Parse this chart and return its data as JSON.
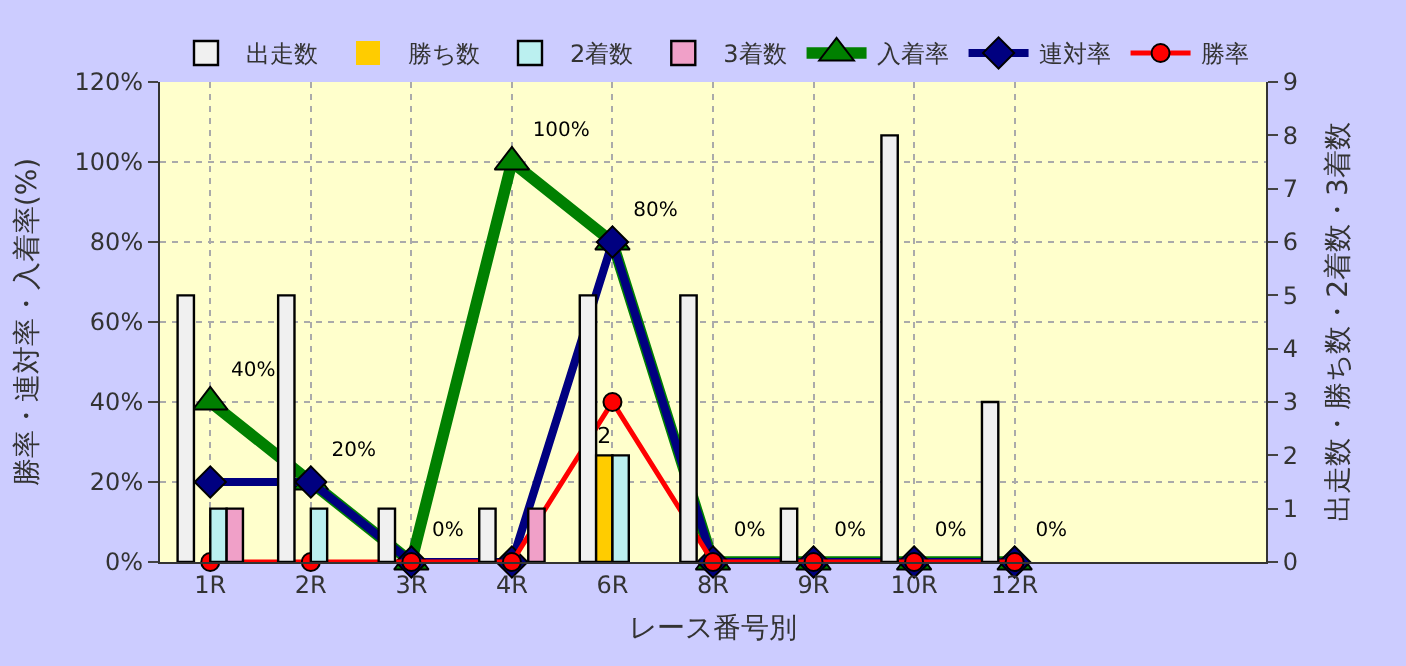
{
  "chart_data": {
    "type": "bar",
    "categories": [
      "1R",
      "2R",
      "3R",
      "4R",
      "6R",
      "8R",
      "9R",
      "10R",
      "12R",
      null,
      null
    ],
    "xlabel": "レース番号別",
    "ylabel": "勝率・連対率・入着率(%)",
    "y2label": "出走数・勝ち数・2着数・3着数",
    "series": [
      {
        "name": "出走数",
        "axis": "y2",
        "color": "#f0f0f0",
        "values": [
          5,
          5,
          1,
          1,
          5,
          5,
          1,
          8,
          3,
          null,
          null
        ]
      },
      {
        "name": "勝ち数",
        "axis": "y2",
        "color": "#ffcc00",
        "values": [
          0,
          0,
          0,
          0,
          2,
          0,
          0,
          0,
          0,
          null,
          null
        ],
        "value_labels": [
          null,
          null,
          null,
          null,
          "2",
          null,
          null,
          null,
          null,
          null,
          null
        ]
      },
      {
        "name": "2着数",
        "axis": "y2",
        "color": "#bbf0f0",
        "values": [
          1,
          1,
          0,
          0,
          2,
          0,
          0,
          0,
          0,
          null,
          null
        ]
      },
      {
        "name": "3着数",
        "axis": "y2",
        "color": "#f0a0c8",
        "values": [
          1,
          0,
          0,
          1,
          0,
          0,
          0,
          0,
          0,
          null,
          null
        ]
      },
      {
        "name": "入着率",
        "type": "line",
        "axis": "y",
        "color": "#008000",
        "marker": "triangle",
        "values": [
          40,
          20,
          0,
          100,
          80,
          0,
          0,
          0,
          0,
          null,
          null
        ],
        "value_labels": [
          "40%",
          "20%",
          "0%",
          "100%",
          "80%",
          "0%",
          "0%",
          "0%",
          "0%",
          null,
          null
        ]
      },
      {
        "name": "連対率",
        "type": "line",
        "axis": "y",
        "color": "#000080",
        "marker": "diamond",
        "values": [
          20,
          20,
          0,
          0,
          80,
          0,
          0,
          0,
          0,
          null,
          null
        ]
      },
      {
        "name": "勝率",
        "type": "line",
        "axis": "y",
        "color": "#ff0000",
        "marker": "circle",
        "values": [
          0,
          0,
          0,
          0,
          40,
          0,
          0,
          0,
          0,
          null,
          null
        ]
      }
    ],
    "ylim": [
      0,
      120
    ],
    "yticks": [
      {
        "value": 0,
        "label": "0%"
      },
      {
        "value": 20,
        "label": "20%"
      },
      {
        "value": 40,
        "label": "40%"
      },
      {
        "value": 60,
        "label": "60%"
      },
      {
        "value": 80,
        "label": "80%"
      },
      {
        "value": 100,
        "label": "100%"
      },
      {
        "value": 120,
        "label": "120%"
      }
    ],
    "y2lim": [
      0,
      9
    ],
    "y2ticks": [
      0,
      1,
      2,
      3,
      4,
      5,
      6,
      7,
      8,
      9
    ],
    "grid": true,
    "legend": "top"
  }
}
